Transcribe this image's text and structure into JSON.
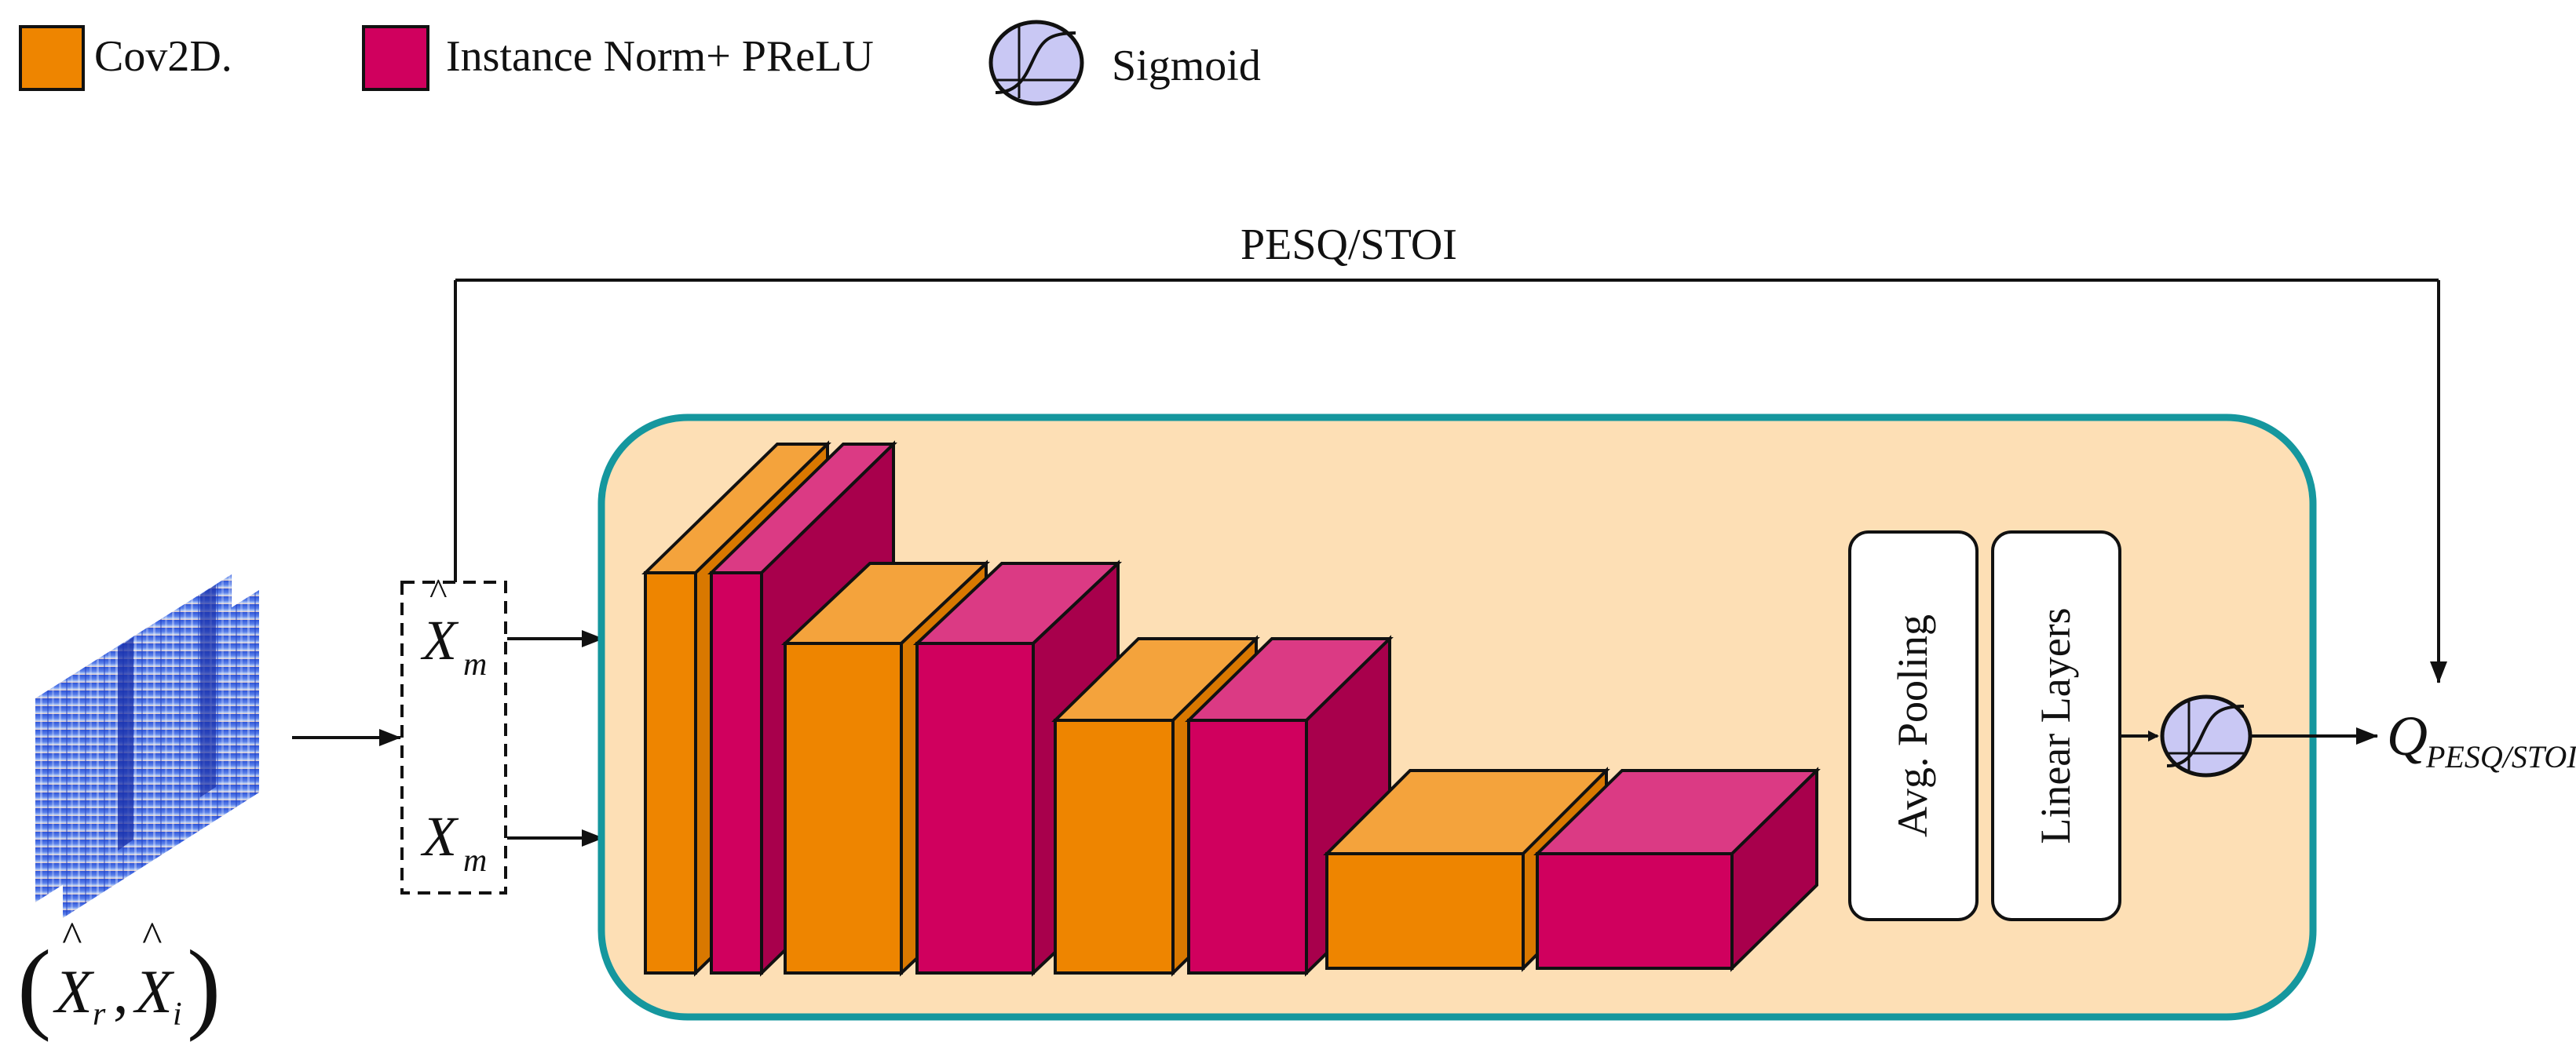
{
  "legend": {
    "conv": {
      "label": "Cov2D.",
      "color": "#EE8500"
    },
    "norm": {
      "label": "Instance Norm+ PReLU",
      "color": "#D0005E"
    },
    "sigmoid": {
      "label": "Sigmoid",
      "color": "#C9C8F4"
    }
  },
  "top_path": {
    "label": "PESQ/STOI"
  },
  "inputs": {
    "x_hat_m": {
      "main": "X",
      "sub": "m"
    },
    "x_m": {
      "main": "X",
      "sub": "m"
    },
    "spectrogram_label": {
      "main1": "X",
      "sub1": "r",
      "main2": "X",
      "sub2": "i"
    }
  },
  "blocks": {
    "avg_pooling": "Avg. Pooling",
    "linear_layers": "Linear Layers"
  },
  "output": {
    "main": "Q",
    "sub": "PESQ/STOI"
  },
  "colors": {
    "container_fill": "#FDDFB5",
    "container_border": "#15979E",
    "conv_front": "#EE8500",
    "conv_top": "#F4A33C",
    "conv_side": "#D97800",
    "norm_front": "#D0005E",
    "norm_top": "#DB3A84",
    "norm_side": "#A8004C",
    "sigmoid_fill": "#C9C8F4"
  }
}
